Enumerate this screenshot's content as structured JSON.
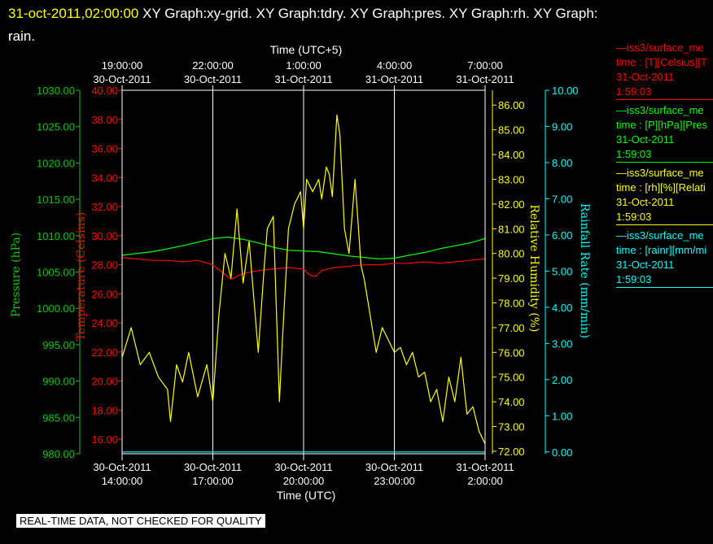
{
  "header": {
    "timestamp": "31-oct-2011,02:00:00",
    "graphs_line1": "XY Graph:xy-grid.  XY Graph:tdry.  XY Graph:pres.  XY Graph:rh.  XY Graph:",
    "graphs_line2": "rain."
  },
  "legend": [
    {
      "name": "—iss3/surface_me",
      "desc": "time : [T][Celsius][T",
      "date": "31-Oct-2011",
      "time": "1:59:03",
      "color": "#ff0000"
    },
    {
      "name": "—iss3/surface_me",
      "desc": "time : [P][hPa][Pres",
      "date": "31-Oct-2011",
      "time": "1:59:03",
      "color": "#00ff00"
    },
    {
      "name": "—iss3/surface_me",
      "desc": "time : [rh][%][Relati",
      "date": "31-Oct-2011",
      "time": "1:59:03",
      "color": "#ffff00"
    },
    {
      "name": "—iss3/surface_me",
      "desc": "time : [rainr][mm/mi",
      "date": "31-Oct-2011",
      "time": "1:59:03",
      "color": "#00ffff"
    }
  ],
  "banner": "REAL-TIME DATA, NOT CHECKED FOR QUALITY",
  "chart_data": {
    "type": "line",
    "x_top_label": "Time (UTC+5)",
    "x_bottom_label": "Time (UTC)",
    "x_bottom_ticks": [
      {
        "date": "30-Oct-2011",
        "time": "14:00:00"
      },
      {
        "date": "30-Oct-2011",
        "time": "17:00:00"
      },
      {
        "date": "30-Oct-2011",
        "time": "20:00:00"
      },
      {
        "date": "30-Oct-2011",
        "time": "23:00:00"
      },
      {
        "date": "31-Oct-2011",
        "time": "2:00:00"
      }
    ],
    "x_top_ticks": [
      {
        "time": "19:00:00",
        "date": "30-Oct-2011"
      },
      {
        "time": "22:00:00",
        "date": "30-Oct-2011"
      },
      {
        "time": "1:00:00",
        "date": "31-Oct-2011"
      },
      {
        "time": "4:00:00",
        "date": "31-Oct-2011"
      },
      {
        "time": "7:00:00",
        "date": "31-Oct-2011"
      }
    ],
    "x_range_hours_utc": [
      0,
      12
    ],
    "grid": "vertical",
    "axes": {
      "pressure": {
        "label": "Pressure (hPa)",
        "color": "#00cc00",
        "ylim": [
          980,
          1030
        ],
        "ticks": [
          "980.00",
          "985.00",
          "990.00",
          "995.00",
          "1000.00",
          "1005.00",
          "1010.00",
          "1015.00",
          "1020.00",
          "1025.00",
          "1030.00"
        ]
      },
      "temperature": {
        "label": "Temperature (Celsius)",
        "color": "#ff0000",
        "ylim": [
          15,
          40
        ],
        "ticks": [
          "16.00",
          "18.00",
          "20.00",
          "22.00",
          "24.00",
          "26.00",
          "28.00",
          "30.00",
          "32.00",
          "34.00",
          "36.00",
          "38.00",
          "40.00"
        ]
      },
      "rh": {
        "label": "Relative Humidity (%)",
        "color": "#ffff00",
        "ylim": [
          71.9,
          86.6
        ],
        "ticks": [
          "72.00",
          "73.00",
          "74.00",
          "75.00",
          "76.00",
          "77.00",
          "78.00",
          "79.00",
          "80.00",
          "81.00",
          "82.00",
          "83.00",
          "84.00",
          "85.00",
          "86.00"
        ]
      },
      "rain": {
        "label": "Rainfall Rate (mm/min)",
        "color": "#00ffff",
        "ylim": [
          -0.05,
          10
        ],
        "ticks": [
          "0.00",
          "1.00",
          "2.00",
          "3.00",
          "4.00",
          "5.00",
          "6.00",
          "7.00",
          "8.00",
          "9.00",
          "10.00"
        ]
      }
    },
    "series": [
      {
        "name": "Temperature",
        "axis": "temperature",
        "color": "#ff0000",
        "x": [
          0,
          0.5,
          1,
          1.5,
          2,
          2.5,
          3,
          3.3,
          3.6,
          4,
          4.5,
          5,
          5.5,
          6,
          6.2,
          6.4,
          6.6,
          7,
          7.5,
          8,
          8.5,
          9,
          9.5,
          10,
          10.5,
          11,
          11.5,
          12
        ],
        "y": [
          28.5,
          28.4,
          28.3,
          28.3,
          28.2,
          28.3,
          28.0,
          27.5,
          27.0,
          27.4,
          27.6,
          27.7,
          27.8,
          27.7,
          27.3,
          27.2,
          27.6,
          27.8,
          27.9,
          28.0,
          28.0,
          28.1,
          28.1,
          28.2,
          28.1,
          28.2,
          28.3,
          28.4
        ]
      },
      {
        "name": "Pressure",
        "axis": "pressure",
        "color": "#00ff00",
        "x": [
          0,
          1,
          2,
          3,
          3.5,
          4,
          4.5,
          5,
          5.5,
          6,
          6.5,
          7,
          7.5,
          8,
          8.5,
          9,
          9.5,
          10,
          10.5,
          11,
          11.5,
          12
        ],
        "y": [
          1007.3,
          1007.8,
          1008.6,
          1009.6,
          1009.8,
          1009.5,
          1009.0,
          1008.4,
          1008.0,
          1007.9,
          1007.8,
          1007.5,
          1007.2,
          1007.0,
          1006.8,
          1006.9,
          1007.3,
          1007.7,
          1008.2,
          1008.6,
          1009.0,
          1009.6
        ]
      },
      {
        "name": "Relative Humidity",
        "axis": "rh",
        "color": "#ffff00",
        "x": [
          0,
          0.3,
          0.6,
          0.9,
          1.2,
          1.5,
          1.6,
          1.8,
          2.0,
          2.2,
          2.5,
          2.8,
          3.0,
          3.2,
          3.4,
          3.6,
          3.8,
          4.0,
          4.2,
          4.5,
          4.7,
          4.8,
          5.0,
          5.2,
          5.3,
          5.5,
          5.7,
          5.9,
          6.0,
          6.1,
          6.3,
          6.5,
          6.6,
          6.75,
          6.85,
          6.95,
          7.1,
          7.2,
          7.35,
          7.5,
          7.7,
          7.9,
          8.0,
          8.2,
          8.4,
          8.6,
          8.8,
          9.0,
          9.2,
          9.4,
          9.6,
          9.8,
          10.0,
          10.2,
          10.4,
          10.6,
          10.8,
          11.0,
          11.2,
          11.4,
          11.6,
          11.8,
          12.0
        ],
        "y": [
          75.8,
          77.0,
          75.5,
          76.0,
          75.0,
          74.5,
          73.2,
          75.5,
          74.8,
          76.0,
          74.2,
          75.5,
          74.0,
          77.5,
          80.0,
          79.0,
          81.8,
          78.8,
          80.5,
          76.0,
          79.5,
          81.0,
          81.5,
          74.0,
          76.5,
          81.0,
          82.0,
          82.5,
          81.0,
          83.0,
          82.5,
          83.0,
          82.2,
          83.5,
          83.2,
          82.3,
          85.6,
          84.8,
          81.0,
          80.0,
          83.0,
          79.5,
          79.0,
          77.5,
          76.0,
          77.0,
          76.5,
          76.0,
          76.2,
          75.5,
          76.0,
          75.0,
          75.2,
          74.0,
          74.5,
          73.2,
          75.0,
          74.0,
          75.8,
          73.5,
          73.8,
          72.8,
          72.3
        ]
      },
      {
        "name": "Rainfall Rate",
        "axis": "rain",
        "color": "#00ffff",
        "x": [
          0,
          12
        ],
        "y": [
          0,
          0
        ]
      }
    ]
  }
}
